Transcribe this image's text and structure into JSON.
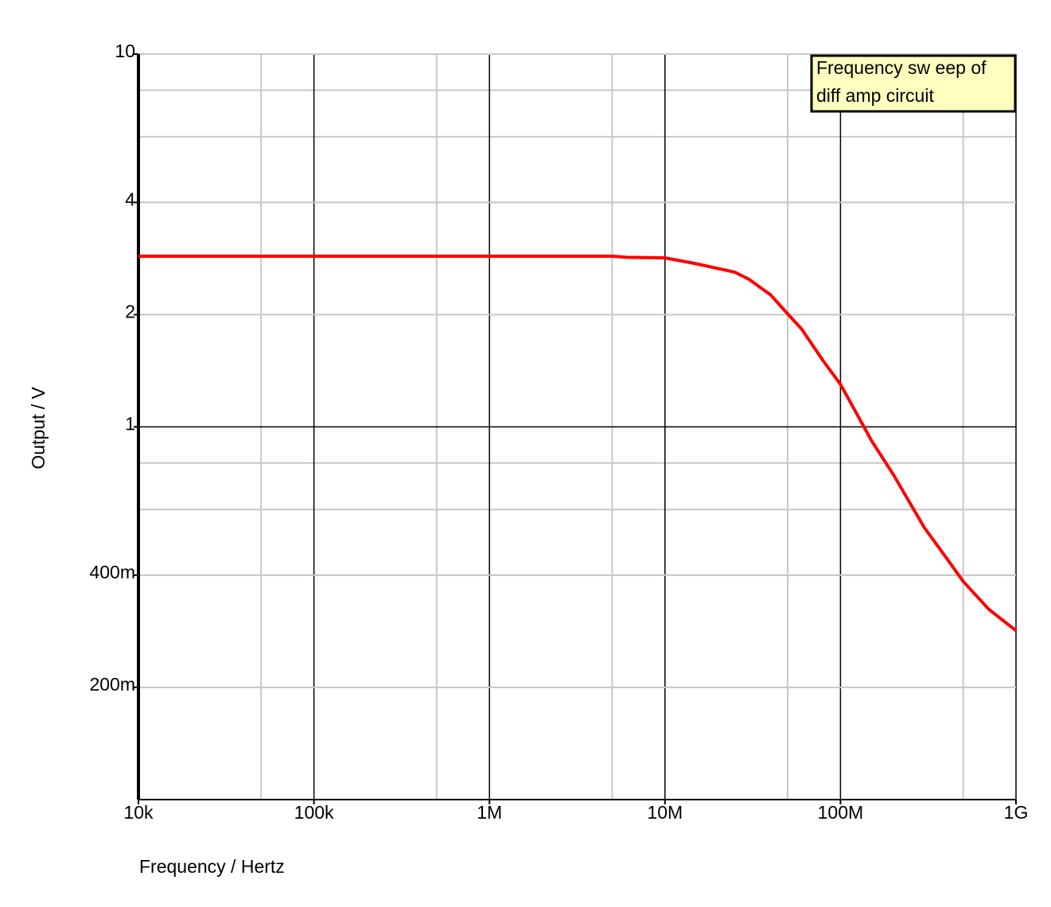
{
  "chart_data": {
    "type": "line",
    "annotation": [
      "Frequency sw eep of",
      "diff amp circuit"
    ],
    "xlabel": "Frequency / Hertz",
    "ylabel": "Output / V",
    "x": [
      10000,
      5000000,
      6000000,
      10000000,
      15000000,
      20000000,
      25000000,
      30000000,
      40000000,
      50000000,
      60000000,
      80000000,
      100000000,
      130000000,
      150000000,
      200000000,
      300000000,
      400000000,
      500000000,
      700000000,
      1000000000
    ],
    "values": [
      2.87,
      2.87,
      2.85,
      2.84,
      2.74,
      2.66,
      2.6,
      2.49,
      2.26,
      2.01,
      1.83,
      1.5,
      1.3,
      1.04,
      0.92,
      0.745,
      0.537,
      0.446,
      0.385,
      0.324,
      0.284
    ],
    "color": "#ff0000",
    "xscale": "log",
    "yscale": "log",
    "xlim": [
      10000,
      1000000000
    ],
    "ylim": [
      0.1,
      10
    ],
    "xticks": [
      {
        "value": 10000,
        "label": "10k"
      },
      {
        "value": 100000,
        "label": "100k"
      },
      {
        "value": 1000000,
        "label": "1M"
      },
      {
        "value": 10000000,
        "label": "10M"
      },
      {
        "value": 100000000,
        "label": "100M"
      },
      {
        "value": 1000000000,
        "label": "1G"
      }
    ],
    "yticks": [
      10,
      4,
      2,
      1,
      {
        "value": 0.4,
        "label": "400m"
      },
      {
        "value": 0.2,
        "label": "200m"
      }
    ],
    "grid": true
  }
}
